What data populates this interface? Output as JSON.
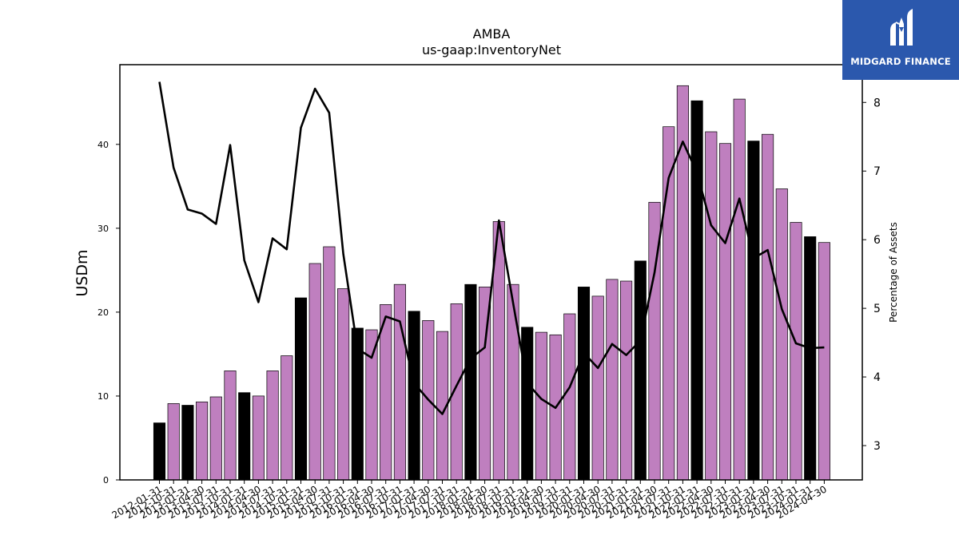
{
  "brand": {
    "name": "MIDGARD FINANCE",
    "color": "#2b58ad"
  },
  "chart_data": {
    "type": "bar",
    "title": "AMBA",
    "subtitle": "us-gaap:InventoryNet",
    "ylabel": "USDm",
    "y2label": "Percentage of Assets",
    "ylim": [
      0,
      49.5
    ],
    "y2lim": [
      2.5,
      8.55
    ],
    "yticks": [
      0,
      10,
      20,
      30,
      40
    ],
    "y2ticks": [
      3,
      4,
      5,
      6,
      7,
      8
    ],
    "colors": {
      "q4_bar": "#000000",
      "other_bar": "#bf7fbf",
      "line": "#000000"
    },
    "categories": [
      "2012-01-31",
      "2012-10-31",
      "2013-01-31",
      "2013-04-30",
      "2013-07-31",
      "2013-10-31",
      "2014-01-31",
      "2014-04-30",
      "2014-07-31",
      "2014-10-31",
      "2015-01-31",
      "2015-04-30",
      "2015-07-31",
      "2015-10-31",
      "2016-01-31",
      "2016-04-30",
      "2016-07-31",
      "2016-10-31",
      "2017-01-31",
      "2017-04-30",
      "2017-07-31",
      "2017-10-31",
      "2018-01-31",
      "2018-04-30",
      "2018-07-31",
      "2018-10-31",
      "2019-01-31",
      "2019-04-30",
      "2019-07-31",
      "2019-10-31",
      "2020-01-31",
      "2020-04-30",
      "2020-07-31",
      "2020-10-31",
      "2021-01-31",
      "2021-04-30",
      "2021-07-31",
      "2021-10-31",
      "2022-01-31",
      "2022-04-30",
      "2022-07-31",
      "2022-10-31",
      "2023-01-31",
      "2023-04-30",
      "2023-07-31",
      "2023-10-31",
      "2024-01-31",
      "2024-04-30"
    ],
    "series": [
      {
        "type": "bar",
        "values": [
          6.8,
          9.1,
          8.9,
          9.3,
          9.9,
          13.0,
          10.4,
          10.0,
          13.0,
          14.8,
          21.7,
          25.8,
          27.8,
          22.8,
          18.1,
          17.9,
          20.9,
          23.3,
          20.1,
          19.0,
          17.7,
          21.0,
          23.3,
          23.0,
          30.8,
          23.3,
          18.2,
          17.6,
          17.3,
          19.8,
          23.0,
          21.9,
          23.9,
          23.7,
          26.1,
          33.1,
          42.1,
          47.0,
          45.2,
          41.5,
          40.1,
          45.4,
          40.4,
          41.2,
          34.7,
          30.7,
          29.0,
          28.3
        ],
        "highlight": [
          true,
          false,
          true,
          false,
          false,
          false,
          true,
          false,
          false,
          false,
          true,
          false,
          false,
          false,
          true,
          false,
          false,
          false,
          true,
          false,
          false,
          false,
          true,
          false,
          false,
          false,
          true,
          false,
          false,
          false,
          true,
          false,
          false,
          false,
          true,
          false,
          false,
          false,
          true,
          false,
          false,
          false,
          true,
          false,
          false,
          false,
          true,
          false
        ]
      },
      {
        "type": "line",
        "axis": "right",
        "values": [
          8.3,
          7.05,
          6.44,
          6.38,
          6.23,
          7.38,
          5.7,
          5.09,
          6.02,
          5.86,
          7.63,
          8.2,
          7.85,
          5.79,
          4.41,
          4.28,
          4.88,
          4.81,
          3.91,
          3.67,
          3.46,
          3.87,
          4.27,
          4.43,
          6.28,
          5.08,
          3.91,
          3.68,
          3.55,
          3.85,
          4.35,
          4.13,
          4.48,
          4.32,
          4.53,
          5.52,
          6.9,
          7.43,
          6.98,
          6.21,
          5.95,
          6.6,
          5.73,
          5.85,
          4.99,
          4.49,
          4.42,
          4.43
        ]
      }
    ]
  }
}
